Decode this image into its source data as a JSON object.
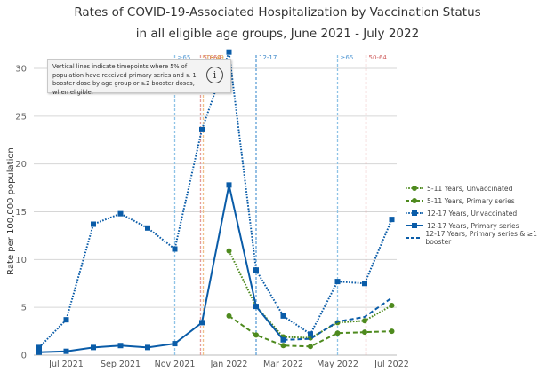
{
  "chart_data": {
    "type": "line",
    "title": "Rates of COVID-19-Associated Hospitalization by Vaccination Status",
    "subtitle": "in all eligible age groups, June 2021 - July 2022",
    "xlabel": "",
    "ylabel": "Rate per 100,000 population",
    "ylim": [
      0,
      30
    ],
    "yticks": [
      0,
      5,
      10,
      15,
      20,
      25,
      30
    ],
    "grid": true,
    "legend_position": "right",
    "x": [
      "Jun 2021",
      "Jul 2021",
      "Aug 2021",
      "Sep 2021",
      "Oct 2021",
      "Nov 2021",
      "Dec 2021",
      "Jan 2022",
      "Feb 2022",
      "Mar 2022",
      "Apr 2022",
      "May 2022",
      "Jun 2022",
      "Jul 2022"
    ],
    "xtick_labels": [
      {
        "index": 1,
        "label": "Jul 2021"
      },
      {
        "index": 3,
        "label": "Sep 2021"
      },
      {
        "index": 5,
        "label": "Nov 2021"
      },
      {
        "index": 7,
        "label": "Jan 2022"
      },
      {
        "index": 9,
        "label": "Mar 2022"
      },
      {
        "index": 11,
        "label": "May 2022"
      },
      {
        "index": 13,
        "label": "Jul 2022"
      }
    ],
    "series": [
      {
        "name": "5-11 Years, Unvaccinated",
        "color": "#4e8a1e",
        "style": "dotted",
        "marker": "circle",
        "values": [
          null,
          null,
          null,
          null,
          null,
          null,
          null,
          10.9,
          5.1,
          1.9,
          1.8,
          3.4,
          3.6,
          5.2
        ]
      },
      {
        "name": "5-11 Years, Primary series",
        "color": "#4e8a1e",
        "style": "dashed",
        "marker": "circle",
        "values": [
          null,
          null,
          null,
          null,
          null,
          null,
          null,
          4.1,
          2.1,
          1.0,
          0.9,
          2.3,
          2.4,
          2.5
        ]
      },
      {
        "name": "12-17 Years, Unvaccinated",
        "color": "#0a5ca8",
        "style": "dotted",
        "marker": "square",
        "values": [
          0.8,
          3.7,
          13.7,
          14.8,
          13.3,
          11.1,
          23.6,
          31.7,
          8.9,
          4.1,
          2.2,
          7.7,
          7.5,
          14.2
        ]
      },
      {
        "name": "12-17 Years, Primary series",
        "color": "#0a5ca8",
        "style": "solid",
        "marker": "square",
        "values": [
          0.3,
          0.4,
          0.8,
          1.0,
          0.8,
          1.2,
          3.4,
          17.8,
          5.1,
          1.6,
          null,
          null,
          null,
          null
        ]
      },
      {
        "name": "12-17 Years, Primary series & ≥1 booster",
        "color": "#0a5ca8",
        "style": "dashed",
        "marker": "none",
        "values": [
          null,
          null,
          null,
          null,
          null,
          null,
          null,
          null,
          null,
          1.6,
          1.7,
          3.5,
          4.0,
          6.0
        ]
      }
    ],
    "vertical_lines": [
      {
        "label": "≥65",
        "color": "#8ec3e6",
        "position": 5.0
      },
      {
        "label": "50-64",
        "color": "#e49a9a",
        "position": 5.95
      },
      {
        "label": "18-49",
        "color": "#f0c08a",
        "position": 6.05
      },
      {
        "label": "12-17",
        "color": "#5c9ed6",
        "position": 8.0
      },
      {
        "label": "≥65",
        "color": "#8ec3e6",
        "position": 11.0
      },
      {
        "label": "50-64",
        "color": "#e49a9a",
        "position": 12.05
      }
    ],
    "annotation": "Vertical lines indicate timepoints where 5% of population have received primary series and ≥ 1 booster dose by age group or ≥2 booster doses, when eligible."
  },
  "tooltip": {
    "text": "Vertical lines indicate timepoints where 5% of population have received primary series and ≥ 1 booster dose by age group or ≥2 booster doses, when eligible.",
    "icon": "info-icon",
    "icon_glyph": "i"
  }
}
